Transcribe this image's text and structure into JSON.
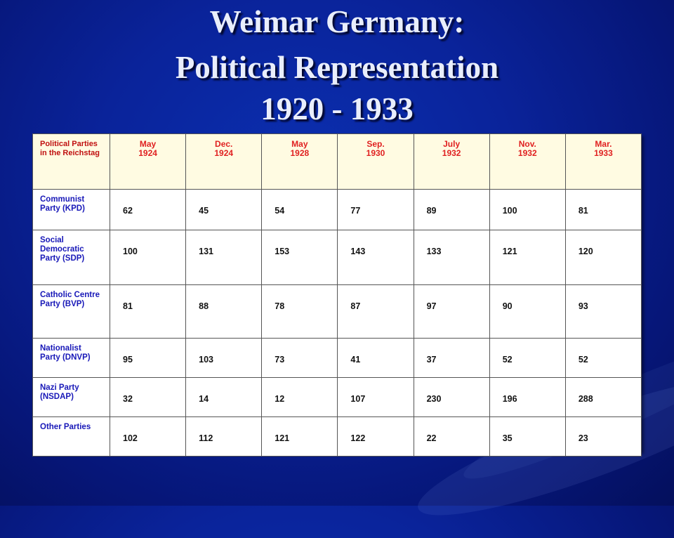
{
  "title": {
    "line1": "Weimar Germany:",
    "line2": "Political Representation",
    "line3": "1920 - 1933"
  },
  "table": {
    "corner_label": "Political Parties in the Reichstag",
    "columns": [
      {
        "month": "May",
        "year": "1924"
      },
      {
        "month": "Dec.",
        "year": "1924"
      },
      {
        "month": "May",
        "year": "1928"
      },
      {
        "month": "Sep.",
        "year": "1930"
      },
      {
        "month": "July",
        "year": "1932"
      },
      {
        "month": "Nov.",
        "year": "1932"
      },
      {
        "month": "Mar.",
        "year": "1933"
      }
    ],
    "rows": [
      {
        "party": "Communist Party (KPD)",
        "values": [
          "62",
          "45",
          "54",
          "77",
          "89",
          "100",
          "81"
        ]
      },
      {
        "party": "Social Democratic Party (SDP)",
        "values": [
          "100",
          "131",
          "153",
          "143",
          "133",
          "121",
          "120"
        ]
      },
      {
        "party": "Catholic Centre Party (BVP)",
        "values": [
          "81",
          "88",
          "78",
          "87",
          "97",
          "90",
          "93"
        ]
      },
      {
        "party": "Nationalist Party (DNVP)",
        "values": [
          "95",
          "103",
          "73",
          "41",
          "37",
          "52",
          "52"
        ]
      },
      {
        "party": "Nazi Party (NSDAP)",
        "values": [
          "32",
          "14",
          "12",
          "107",
          "230",
          "196",
          "288"
        ]
      },
      {
        "party": "Other Parties",
        "values": [
          "102",
          "112",
          "121",
          "122",
          "22",
          "35",
          "23"
        ]
      }
    ]
  }
}
